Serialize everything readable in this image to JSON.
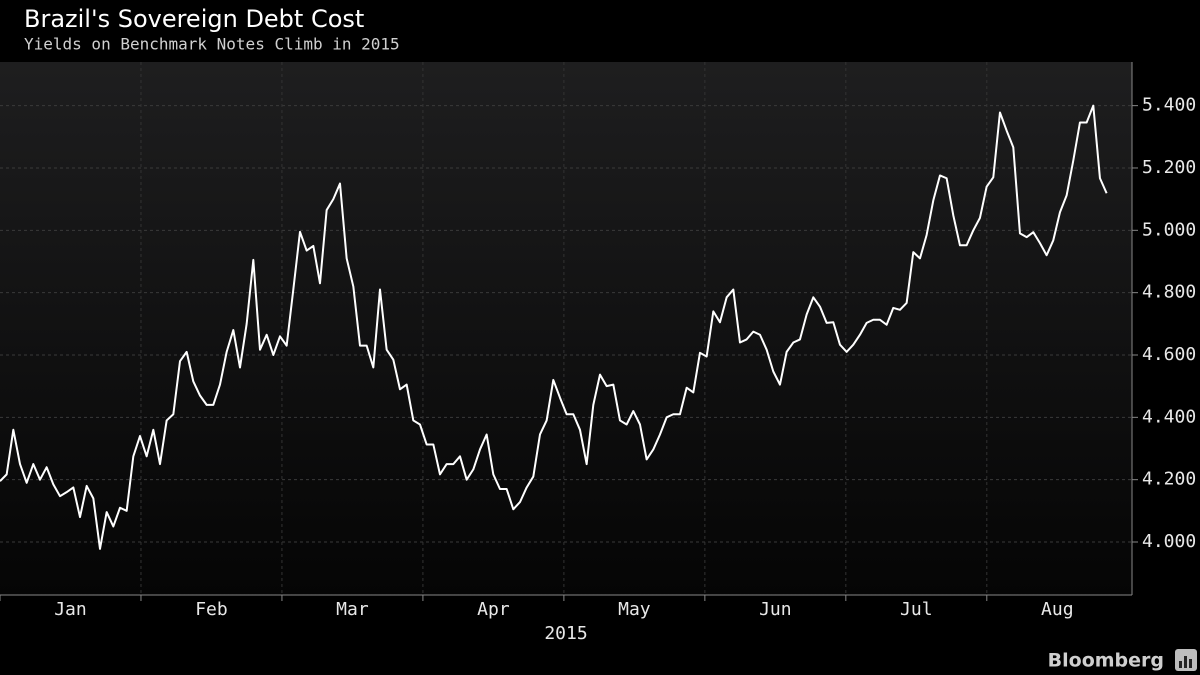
{
  "chart_data": {
    "type": "line",
    "title": "Brazil's Sovereign Debt Cost",
    "subtitle": "Yields on Benchmark Notes Climb in 2015",
    "x_label": "2015",
    "months": [
      "Jan",
      "Feb",
      "Mar",
      "Apr",
      "May",
      "Jun",
      "Jul",
      "Aug"
    ],
    "source": "Bloomberg",
    "color": "#ffffff",
    "grid": true,
    "ylim": [
      3.83,
      5.54
    ],
    "yticks": [
      {
        "value": 4.0,
        "label": "4.000"
      },
      {
        "value": 4.2,
        "label": "4.200"
      },
      {
        "value": 4.4,
        "label": "4.400"
      },
      {
        "value": 4.6,
        "label": "4.600"
      },
      {
        "value": 4.8,
        "label": "4.800"
      },
      {
        "value": 5.0,
        "label": "5.000"
      },
      {
        "value": 5.2,
        "label": "5.200"
      },
      {
        "value": 5.4,
        "label": "5.400"
      }
    ],
    "values": [
      4.195,
      4.217,
      4.36,
      4.25,
      4.19,
      4.25,
      4.2,
      4.24,
      4.185,
      4.147,
      4.16,
      4.175,
      4.08,
      4.18,
      4.14,
      3.978,
      4.096,
      4.05,
      4.11,
      4.1,
      4.275,
      4.34,
      4.275,
      4.36,
      4.25,
      4.39,
      4.41,
      4.58,
      4.61,
      4.515,
      4.47,
      4.44,
      4.44,
      4.505,
      4.61,
      4.68,
      4.56,
      4.7,
      4.905,
      4.617,
      4.665,
      4.6,
      4.66,
      4.63,
      4.81,
      4.995,
      4.935,
      4.95,
      4.83,
      5.065,
      5.1,
      5.15,
      4.91,
      4.82,
      4.63,
      4.63,
      4.56,
      4.81,
      4.617,
      4.585,
      4.49,
      4.505,
      4.39,
      4.377,
      4.313,
      4.313,
      4.217,
      4.25,
      4.25,
      4.275,
      4.2,
      4.233,
      4.297,
      4.345,
      4.217,
      4.17,
      4.17,
      4.105,
      4.128,
      4.175,
      4.21,
      4.345,
      4.39,
      4.52,
      4.463,
      4.41,
      4.41,
      4.36,
      4.25,
      4.44,
      4.537,
      4.5,
      4.505,
      4.39,
      4.377,
      4.42,
      4.377,
      4.265,
      4.297,
      4.345,
      4.4,
      4.41,
      4.41,
      4.495,
      4.48,
      4.607,
      4.595,
      4.74,
      4.705,
      4.785,
      4.81,
      4.64,
      4.65,
      4.675,
      4.665,
      4.617,
      4.547,
      4.505,
      4.61,
      4.64,
      4.65,
      4.73,
      4.785,
      4.755,
      4.703,
      4.705,
      4.633,
      4.61,
      4.633,
      4.665,
      4.703,
      4.713,
      4.713,
      4.697,
      4.751,
      4.745,
      4.767,
      4.93,
      4.91,
      4.985,
      5.096,
      5.176,
      5.167,
      5.048,
      4.952,
      4.952,
      5.0,
      5.04,
      5.14,
      5.17,
      5.378,
      5.32,
      5.266,
      4.99,
      4.978,
      4.994,
      4.959,
      4.92,
      4.968,
      5.058,
      5.112,
      5.224,
      5.346,
      5.346,
      5.4,
      5.167,
      5.119
    ]
  }
}
